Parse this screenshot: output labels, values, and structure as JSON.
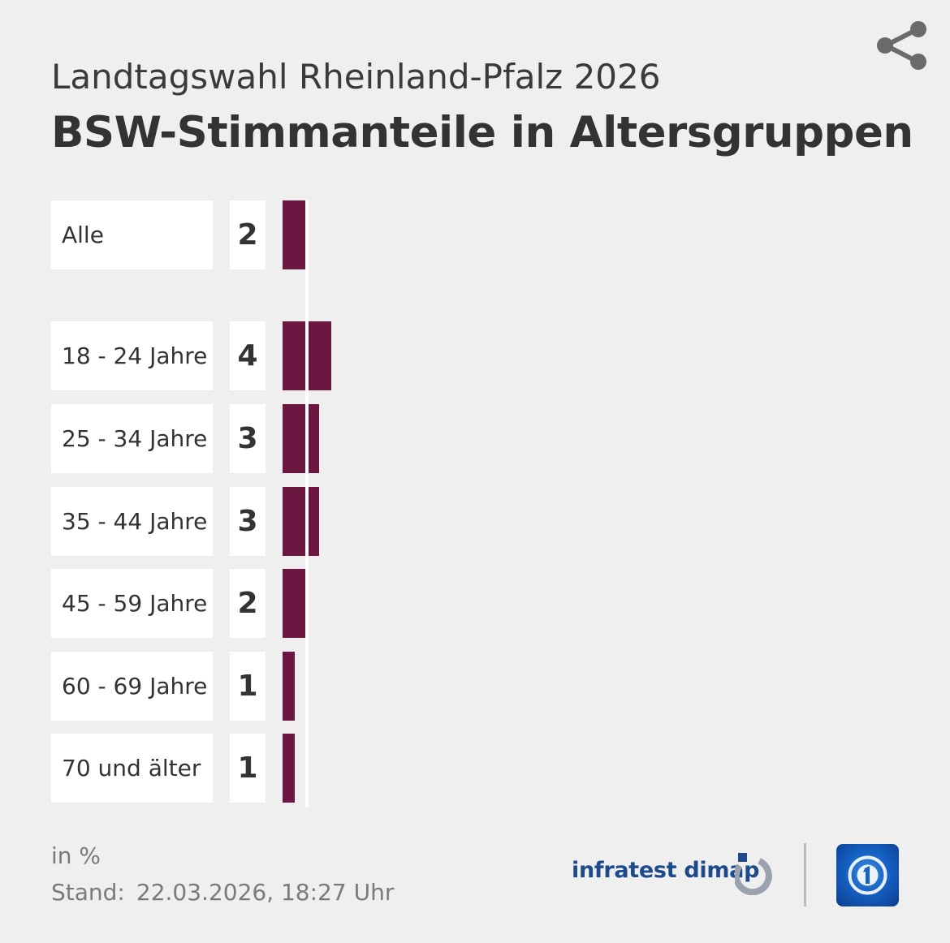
{
  "header": {
    "subtitle": "Landtagswahl Rheinland-Pfalz 2026",
    "title": "BSW-Stimmanteile in Altersgruppen",
    "share_icon": "share-icon"
  },
  "chart_data": {
    "type": "bar",
    "orientation": "horizontal",
    "categories": [
      "Alle",
      "18 - 24 Jahre",
      "25 - 34 Jahre",
      "35 - 44 Jahre",
      "45 - 59 Jahre",
      "60 - 69 Jahre",
      "70 und älter"
    ],
    "values": [
      2,
      4,
      3,
      3,
      2,
      1,
      1
    ],
    "value_labels": [
      "2",
      "4",
      "3",
      "3",
      "2",
      "1",
      "1"
    ],
    "reference_value": 2,
    "bar_color": "#6b1741",
    "grid": false,
    "legend": "none"
  },
  "footer": {
    "unit": "in %",
    "stand_label": "Stand:",
    "stand_value": "22.03.2026, 18:27 Uhr",
    "brand_text": "infratest dimap",
    "brand_icon": "infratest-dimap-logo-icon",
    "broadcaster_icon": "tagesschau-logo-icon"
  }
}
